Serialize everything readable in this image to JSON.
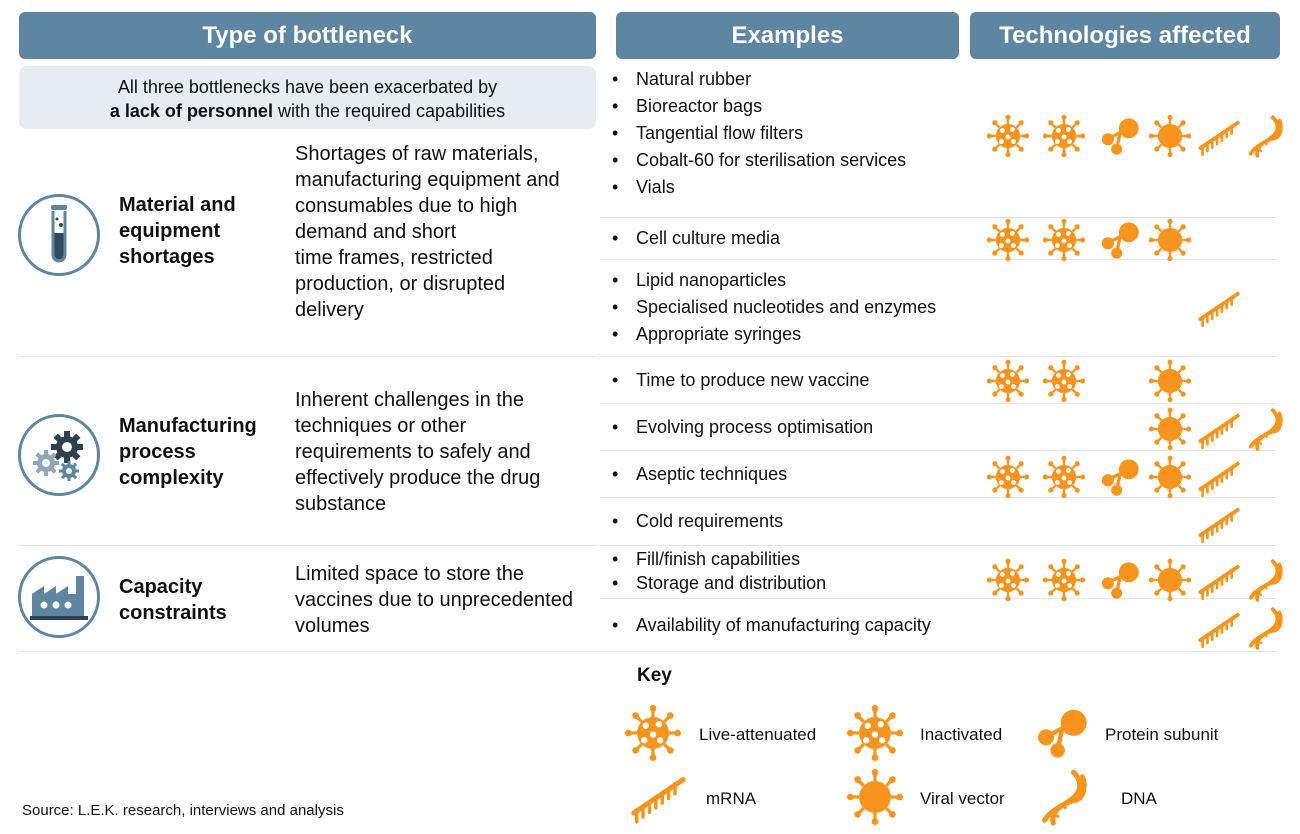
{
  "headers": {
    "type": "Type of bottleneck",
    "examples": "Examples",
    "technologies": "Technologies affected"
  },
  "note": {
    "line1": "All three bottlenecks have been exacerbated by",
    "bold": "a lack of personnel",
    "rest": " with the required capabilities"
  },
  "bottlenecks": [
    {
      "name": [
        "Material and",
        "equipment",
        "shortages"
      ],
      "icon": "test-tube-icon",
      "description": [
        "Shortages of raw materials,",
        "manufacturing equipment and",
        "consumables due to high",
        "demand and short",
        "time frames, restricted",
        "production, or disrupted",
        "delivery"
      ]
    },
    {
      "name": [
        "Manufacturing",
        "process",
        "complexity"
      ],
      "icon": "gears-icon",
      "description": [
        "Inherent challenges in the",
        "techniques or other",
        "requirements to safely and",
        "effectively produce the drug",
        "substance"
      ]
    },
    {
      "name": [
        "Capacity",
        "constraints"
      ],
      "icon": "factory-icon",
      "description": [
        "Limited space to store the",
        "vaccines due to unprecedented",
        "volumes"
      ]
    }
  ],
  "example_groups": [
    {
      "items": [
        "Natural rubber",
        "Bioreactor bags",
        "Tangential flow filters",
        "Cobalt-60 for sterilisation services",
        "Vials"
      ],
      "techs": [
        "live-attenuated",
        "inactivated",
        "protein-subunit",
        "viral-vector",
        "mrna",
        "dna"
      ]
    },
    {
      "items": [
        "Cell culture media"
      ],
      "techs": [
        "live-attenuated",
        "inactivated",
        "protein-subunit",
        "viral-vector"
      ]
    },
    {
      "items": [
        "Lipid nanoparticles",
        "Specialised nucleotides and enzymes",
        "Appropriate syringes"
      ],
      "techs": [
        "mrna"
      ]
    },
    {
      "items": [
        "Time to produce new vaccine"
      ],
      "techs": [
        "live-attenuated",
        "inactivated",
        "viral-vector"
      ]
    },
    {
      "items": [
        "Evolving process optimisation"
      ],
      "techs": [
        "viral-vector",
        "mrna",
        "dna"
      ]
    },
    {
      "items": [
        "Aseptic techniques"
      ],
      "techs": [
        "live-attenuated",
        "inactivated",
        "protein-subunit",
        "viral-vector",
        "mrna"
      ]
    },
    {
      "items": [
        "Cold requirements"
      ],
      "techs": [
        "mrna"
      ]
    },
    {
      "items": [
        "Fill/finish capabilities",
        "Storage and distribution"
      ],
      "techs": [
        "live-attenuated",
        "inactivated",
        "protein-subunit",
        "viral-vector",
        "mrna",
        "dna"
      ]
    },
    {
      "items": [
        "Availability of manufacturing capacity"
      ],
      "techs": [
        "mrna",
        "dna"
      ]
    }
  ],
  "key": {
    "title": "Key",
    "items": [
      {
        "id": "live-attenuated",
        "label": "Live-attenuated"
      },
      {
        "id": "inactivated",
        "label": "Inactivated"
      },
      {
        "id": "protein-subunit",
        "label": "Protein subunit"
      },
      {
        "id": "mrna",
        "label": "mRNA"
      },
      {
        "id": "viral-vector",
        "label": "Viral vector"
      },
      {
        "id": "dna",
        "label": "DNA"
      }
    ]
  },
  "source": "Source: L.E.K. research, interviews and analysis",
  "colors": {
    "header": "#5e86a3",
    "note_bg": "#e6edf1",
    "accent": "#f7941d"
  }
}
